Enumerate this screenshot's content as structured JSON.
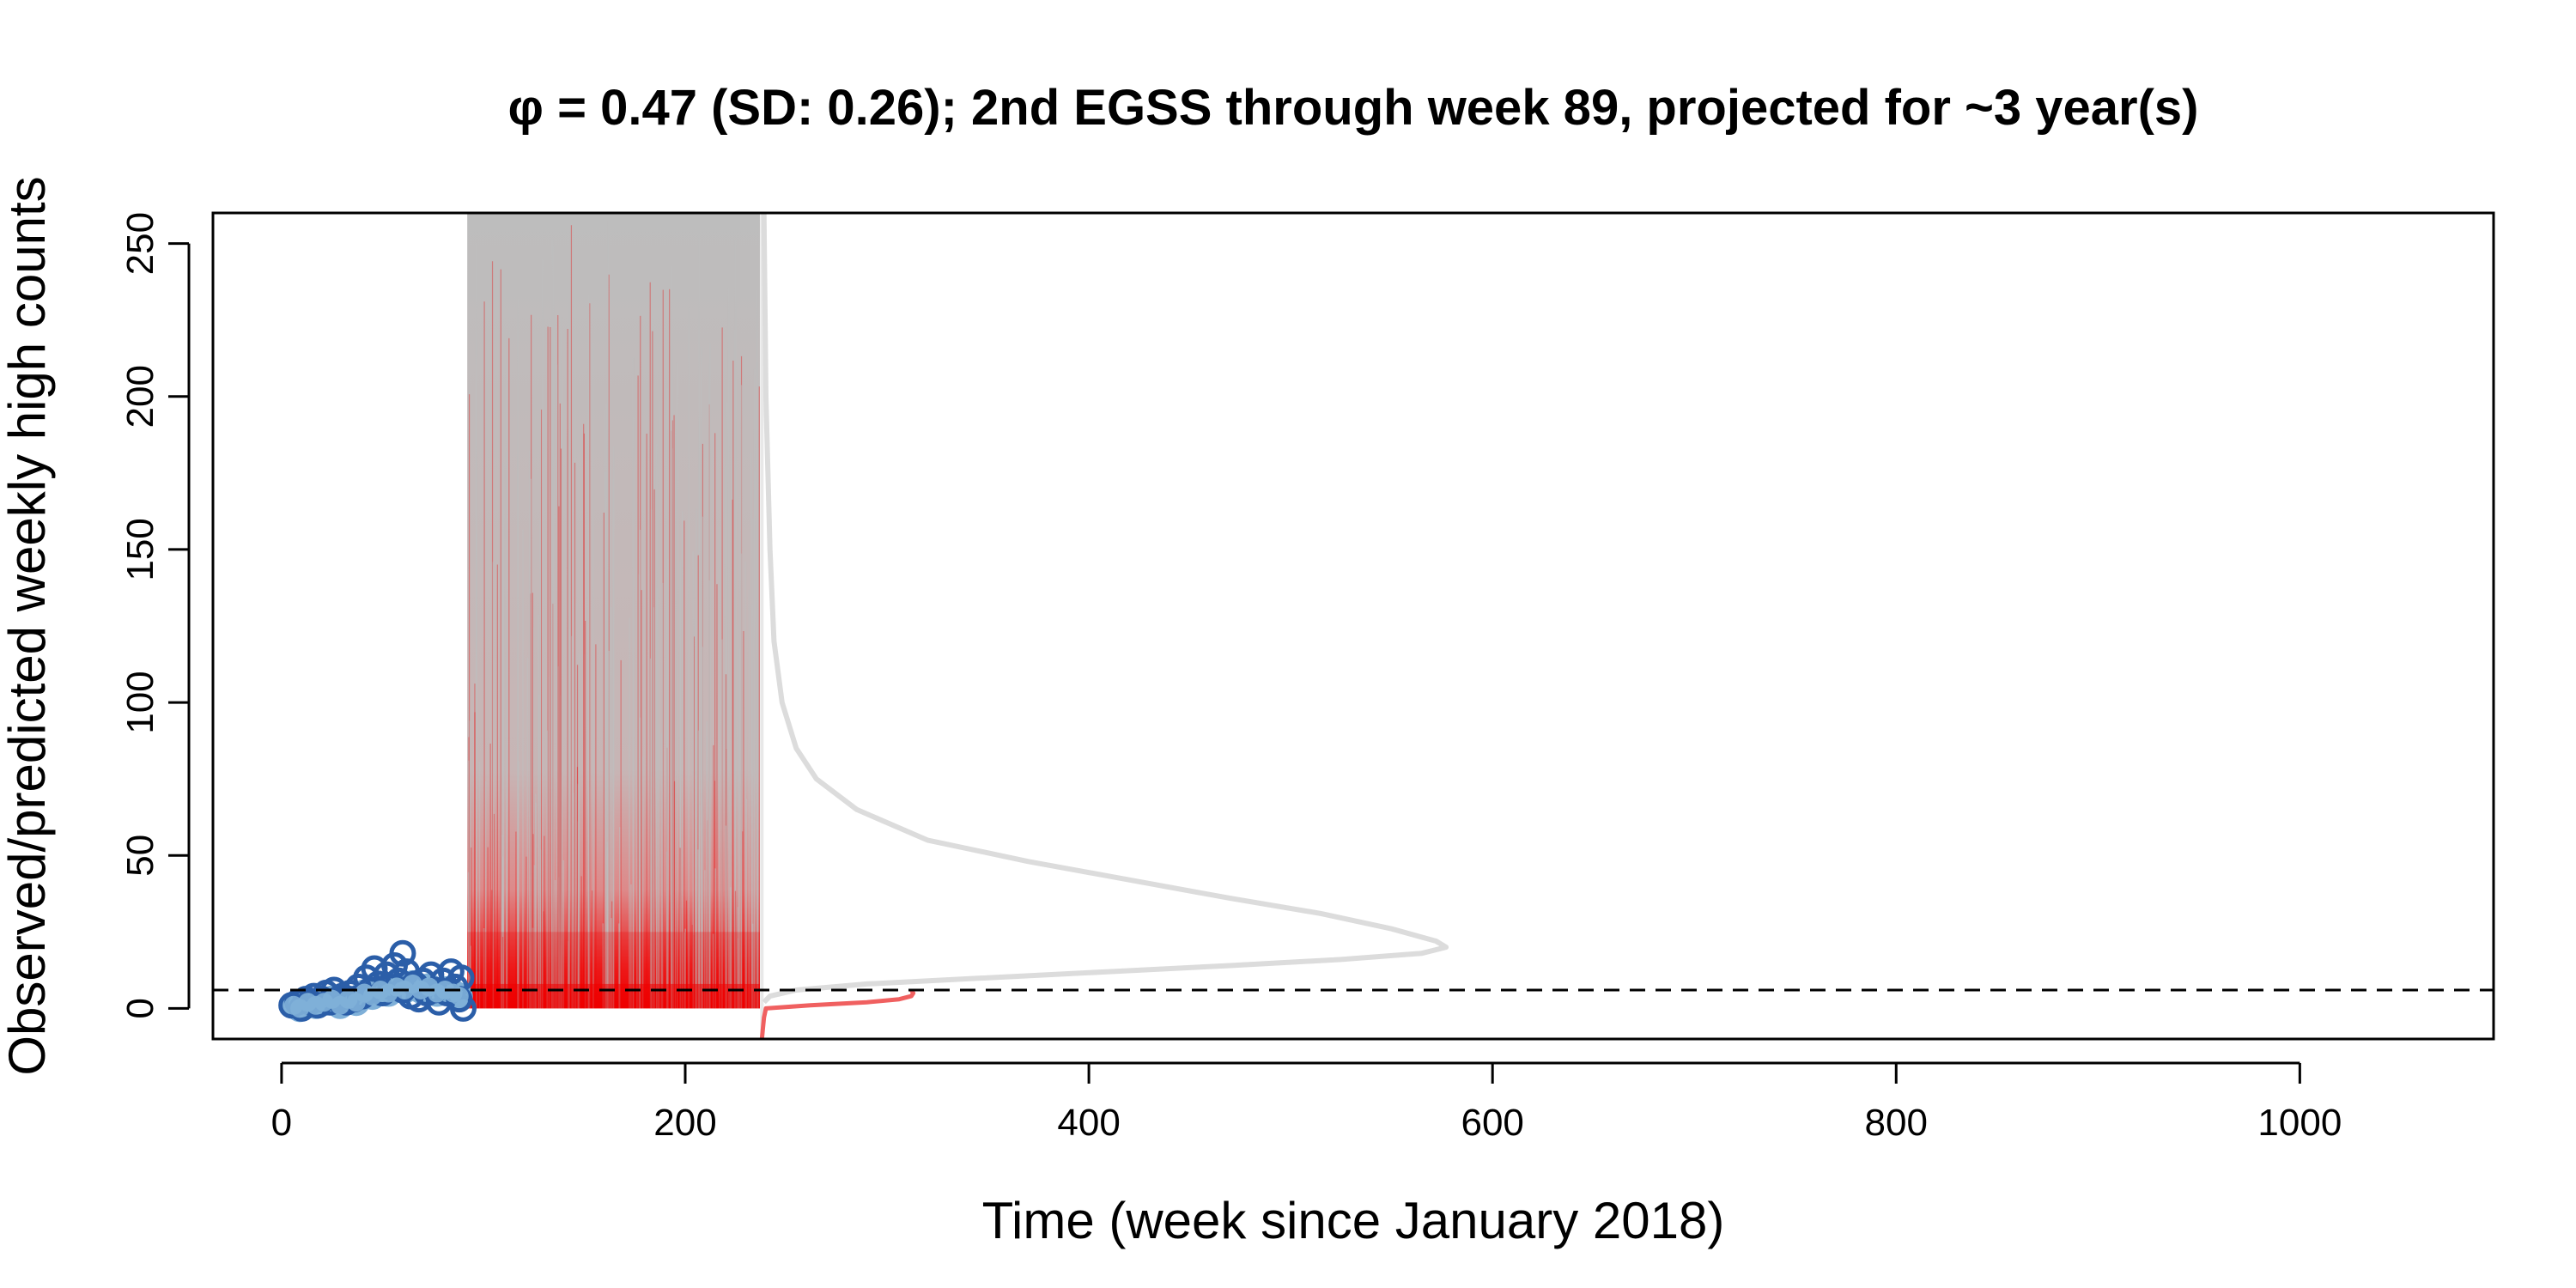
{
  "chart_data": {
    "type": "line",
    "title": "φ = 0.47 (SD: 0.26); 2nd EGSS through week 89, projected for ~3 year(s)",
    "xlabel": "Time (week since January 2018)",
    "ylabel": "Observed/predicted weekly high counts",
    "xlim": [
      -34,
      1096
    ],
    "ylim": [
      -10,
      260
    ],
    "x_ticks": [
      0,
      200,
      400,
      600,
      800,
      1000
    ],
    "y_ticks": [
      0,
      50,
      100,
      150,
      200,
      250
    ],
    "threshold": 6,
    "grid": false,
    "legend": "none",
    "projection_window": [
      92,
      237
    ],
    "observed_points": [
      {
        "x": 5,
        "y": 1
      },
      {
        "x": 8,
        "y": 2
      },
      {
        "x": 10,
        "y": 0
      },
      {
        "x": 12,
        "y": 3
      },
      {
        "x": 14,
        "y": 2
      },
      {
        "x": 16,
        "y": 4
      },
      {
        "x": 18,
        "y": 1
      },
      {
        "x": 20,
        "y": 3
      },
      {
        "x": 22,
        "y": 5
      },
      {
        "x": 24,
        "y": 2
      },
      {
        "x": 26,
        "y": 6
      },
      {
        "x": 28,
        "y": 3
      },
      {
        "x": 30,
        "y": 4
      },
      {
        "x": 32,
        "y": 2
      },
      {
        "x": 34,
        "y": 5
      },
      {
        "x": 36,
        "y": 3
      },
      {
        "x": 38,
        "y": 7
      },
      {
        "x": 40,
        "y": 4
      },
      {
        "x": 42,
        "y": 10
      },
      {
        "x": 44,
        "y": 6
      },
      {
        "x": 46,
        "y": 13
      },
      {
        "x": 48,
        "y": 8
      },
      {
        "x": 50,
        "y": 5
      },
      {
        "x": 52,
        "y": 11
      },
      {
        "x": 54,
        "y": 7
      },
      {
        "x": 56,
        "y": 14
      },
      {
        "x": 58,
        "y": 9
      },
      {
        "x": 60,
        "y": 6
      },
      {
        "x": 62,
        "y": 12
      },
      {
        "x": 60,
        "y": 18
      },
      {
        "x": 64,
        "y": 4
      },
      {
        "x": 66,
        "y": 8
      },
      {
        "x": 68,
        "y": 3
      },
      {
        "x": 70,
        "y": 9
      },
      {
        "x": 72,
        "y": 5
      },
      {
        "x": 74,
        "y": 11
      },
      {
        "x": 76,
        "y": 6
      },
      {
        "x": 78,
        "y": 2
      },
      {
        "x": 80,
        "y": 9
      },
      {
        "x": 82,
        "y": 5
      },
      {
        "x": 84,
        "y": 12
      },
      {
        "x": 86,
        "y": 7
      },
      {
        "x": 88,
        "y": 3
      },
      {
        "x": 89,
        "y": 10
      },
      {
        "x": 90,
        "y": 0
      }
    ],
    "filled_points": [
      {
        "x": 6,
        "y": 1
      },
      {
        "x": 9,
        "y": 0
      },
      {
        "x": 13,
        "y": 2
      },
      {
        "x": 17,
        "y": 1
      },
      {
        "x": 21,
        "y": 2
      },
      {
        "x": 25,
        "y": 3
      },
      {
        "x": 29,
        "y": 1
      },
      {
        "x": 33,
        "y": 3
      },
      {
        "x": 37,
        "y": 2
      },
      {
        "x": 41,
        "y": 5
      },
      {
        "x": 45,
        "y": 4
      },
      {
        "x": 49,
        "y": 6
      },
      {
        "x": 53,
        "y": 5
      },
      {
        "x": 57,
        "y": 7
      },
      {
        "x": 61,
        "y": 6
      },
      {
        "x": 65,
        "y": 8
      },
      {
        "x": 69,
        "y": 6
      },
      {
        "x": 73,
        "y": 7
      },
      {
        "x": 77,
        "y": 5
      },
      {
        "x": 81,
        "y": 6
      },
      {
        "x": 85,
        "y": 5
      },
      {
        "x": 88,
        "y": 4
      }
    ],
    "extinction_week_density": [
      {
        "y": -10,
        "x": 238
      },
      {
        "y": -3,
        "x": 239
      },
      {
        "y": 0,
        "x": 240
      },
      {
        "y": 1,
        "x": 262
      },
      {
        "y": 2,
        "x": 290
      },
      {
        "y": 3,
        "x": 306
      },
      {
        "y": 4,
        "x": 312
      },
      {
        "y": 5,
        "x": 313
      },
      {
        "y": 6,
        "x": 312
      }
    ],
    "abundance_density": [
      {
        "y": 260,
        "x": 239
      },
      {
        "y": 200,
        "x": 240
      },
      {
        "y": 150,
        "x": 242
      },
      {
        "y": 120,
        "x": 244
      },
      {
        "y": 100,
        "x": 248
      },
      {
        "y": 85,
        "x": 255
      },
      {
        "y": 75,
        "x": 265
      },
      {
        "y": 65,
        "x": 285
      },
      {
        "y": 55,
        "x": 320
      },
      {
        "y": 48,
        "x": 370
      },
      {
        "y": 42,
        "x": 420
      },
      {
        "y": 36,
        "x": 470
      },
      {
        "y": 31,
        "x": 515
      },
      {
        "y": 26,
        "x": 550
      },
      {
        "y": 22,
        "x": 572
      },
      {
        "y": 20,
        "x": 577
      },
      {
        "y": 18,
        "x": 565
      },
      {
        "y": 16,
        "x": 525
      },
      {
        "y": 14,
        "x": 470
      },
      {
        "y": 12,
        "x": 410
      },
      {
        "y": 10,
        "x": 350
      },
      {
        "y": 8,
        "x": 290
      },
      {
        "y": 6,
        "x": 255
      },
      {
        "y": 4,
        "x": 242
      },
      {
        "y": 2,
        "x": 239
      }
    ],
    "colors": {
      "observed_stroke": "#2b5ea8",
      "observed_fill": "#7fb0d8",
      "projection_gray": "#bdbdbd",
      "projection_red": "#ee0000",
      "threshold_line": "#000000",
      "density_gray": "#dcdcdc",
      "density_red": "#f06060"
    }
  }
}
